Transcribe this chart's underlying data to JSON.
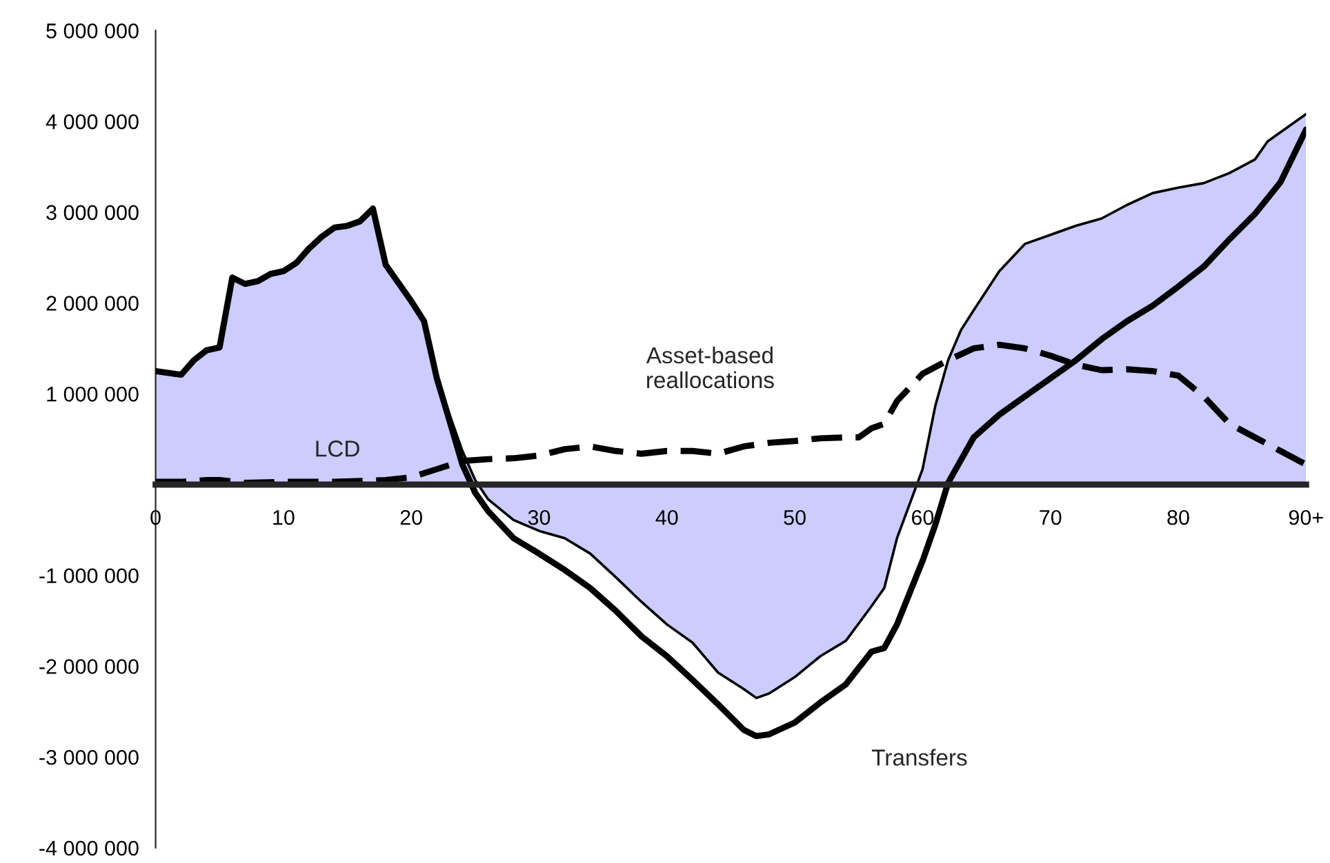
{
  "chart_data": {
    "type": "line",
    "xlim": [
      0,
      90
    ],
    "xticks": [
      0,
      10,
      20,
      30,
      40,
      50,
      60,
      70,
      80,
      {
        "value": 90,
        "label": "90+"
      }
    ],
    "ylim": [
      -4000000,
      5000000
    ],
    "yticks": [
      {
        "value": -4000000,
        "label": "-4 000 000"
      },
      {
        "value": -3000000,
        "label": "-3 000 000"
      },
      {
        "value": -2000000,
        "label": "-2 000 000"
      },
      {
        "value": -1000000,
        "label": "-1 000 000"
      },
      {
        "value": 0,
        "label": null
      },
      {
        "value": 1000000,
        "label": "1 000 000"
      },
      {
        "value": 2000000,
        "label": "2 000 000"
      },
      {
        "value": 3000000,
        "label": "3 000 000"
      },
      {
        "value": 4000000,
        "label": "4 000 000"
      },
      {
        "value": 5000000,
        "label": "5 000 000"
      }
    ],
    "grid": false,
    "legend": false,
    "series": [
      {
        "name": "LCD",
        "type": "area",
        "color": "#ccccff",
        "x": [
          0,
          2,
          3,
          4,
          5,
          6,
          7,
          8,
          9,
          10,
          11,
          12,
          13,
          14,
          15,
          16,
          17,
          18,
          19,
          20,
          21,
          22,
          23,
          24,
          25,
          26,
          28,
          30,
          32,
          34,
          36,
          38,
          40,
          42,
          44,
          46,
          47,
          48,
          50,
          52,
          54,
          56,
          57,
          58,
          60,
          61,
          62,
          63,
          64,
          66,
          68,
          70,
          72,
          74,
          76,
          78,
          80,
          82,
          84,
          86,
          87,
          90
        ],
        "values": [
          1250000,
          1210000,
          1370000,
          1480000,
          1510000,
          2280000,
          2210000,
          2240000,
          2320000,
          2350000,
          2440000,
          2600000,
          2730000,
          2830000,
          2850000,
          2900000,
          3040000,
          2420000,
          2220000,
          2020000,
          1800000,
          1170000,
          770000,
          370000,
          50000,
          -160000,
          -390000,
          -510000,
          -590000,
          -760000,
          -1020000,
          -1290000,
          -1540000,
          -1740000,
          -2070000,
          -2250000,
          -2350000,
          -2300000,
          -2120000,
          -1890000,
          -1720000,
          -1340000,
          -1140000,
          -590000,
          170000,
          870000,
          1370000,
          1700000,
          1920000,
          2350000,
          2650000,
          2750000,
          2850000,
          2930000,
          3080000,
          3210000,
          3270000,
          3320000,
          3430000,
          3580000,
          3780000,
          4080000
        ]
      },
      {
        "name": "Transfers",
        "color": "#000000",
        "line_style": "solid",
        "x": [
          0,
          2,
          3,
          4,
          5,
          6,
          7,
          8,
          9,
          10,
          11,
          12,
          13,
          14,
          15,
          16,
          17,
          18,
          19,
          20,
          21,
          22,
          23,
          24,
          25,
          26,
          28,
          30,
          32,
          34,
          36,
          38,
          40,
          42,
          44,
          46,
          47,
          48,
          50,
          52,
          54,
          56,
          57,
          58,
          59,
          60,
          61,
          62,
          63,
          64,
          66,
          68,
          70,
          72,
          74,
          76,
          78,
          80,
          82,
          84,
          86,
          88,
          90
        ],
        "values": [
          1250000,
          1210000,
          1370000,
          1480000,
          1510000,
          2280000,
          2210000,
          2240000,
          2320000,
          2350000,
          2440000,
          2600000,
          2730000,
          2830000,
          2850000,
          2900000,
          3040000,
          2420000,
          2220000,
          2020000,
          1800000,
          1170000,
          700000,
          220000,
          -90000,
          -290000,
          -590000,
          -760000,
          -940000,
          -1140000,
          -1390000,
          -1670000,
          -1890000,
          -2150000,
          -2420000,
          -2700000,
          -2770000,
          -2750000,
          -2620000,
          -2400000,
          -2200000,
          -1840000,
          -1800000,
          -1540000,
          -1190000,
          -840000,
          -440000,
          20000,
          270000,
          520000,
          770000,
          970000,
          1170000,
          1370000,
          1600000,
          1800000,
          1970000,
          2180000,
          2400000,
          2700000,
          2980000,
          3330000,
          3910000
        ]
      },
      {
        "name": "Asset-based\nreallocations",
        "color": "#000000",
        "line_style": "dashed",
        "x": [
          0,
          2,
          4,
          5,
          7,
          10,
          14,
          18,
          20,
          22,
          24,
          26,
          28,
          30,
          32,
          34,
          36,
          38,
          40,
          42,
          44,
          46,
          48,
          50,
          52,
          54,
          55,
          56,
          57,
          58,
          59,
          60,
          62,
          64,
          66,
          68,
          70,
          72,
          74,
          76,
          78,
          80,
          82,
          84,
          86,
          88,
          90
        ],
        "values": [
          30000,
          30000,
          50000,
          50000,
          20000,
          30000,
          30000,
          50000,
          80000,
          170000,
          260000,
          280000,
          290000,
          320000,
          390000,
          420000,
          370000,
          340000,
          370000,
          370000,
          340000,
          420000,
          460000,
          480000,
          510000,
          520000,
          520000,
          620000,
          670000,
          920000,
          1070000,
          1220000,
          1370000,
          1500000,
          1540000,
          1500000,
          1420000,
          1320000,
          1260000,
          1270000,
          1250000,
          1200000,
          970000,
          670000,
          520000,
          370000,
          220000
        ]
      }
    ]
  }
}
